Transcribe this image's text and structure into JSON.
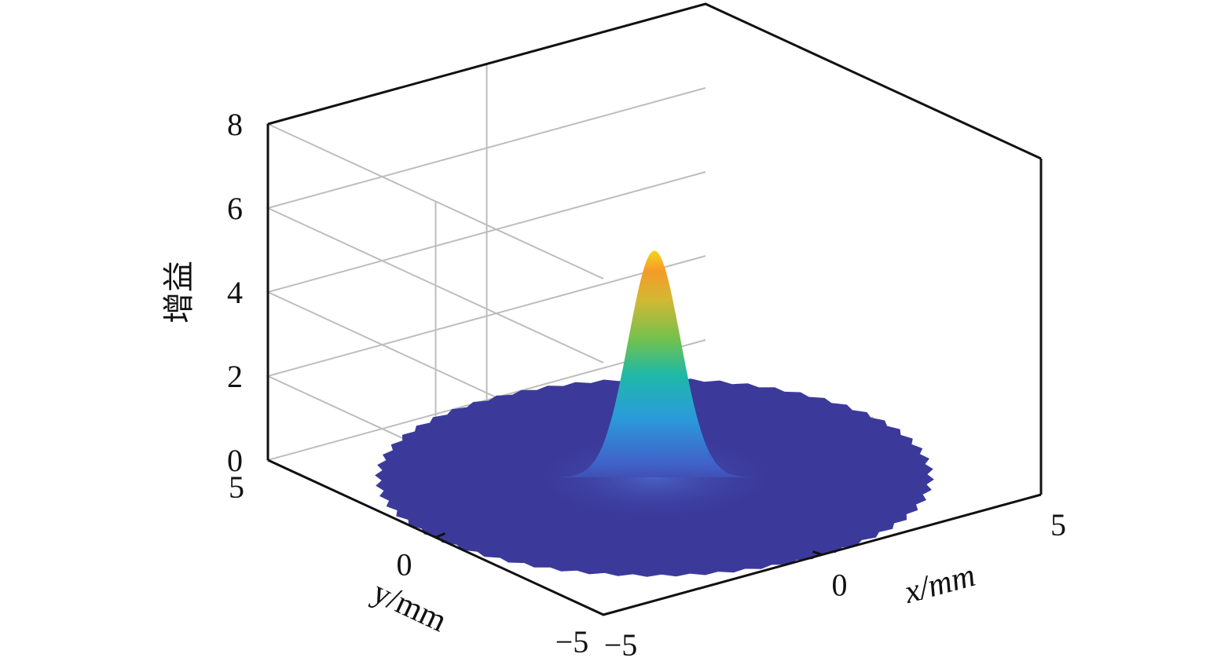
{
  "chart_data": {
    "type": "surface",
    "title": "",
    "xlabel": "x/mm",
    "ylabel": "y/mm",
    "zlabel": "增益",
    "xlim": [
      -5,
      5
    ],
    "ylim": [
      -5,
      5
    ],
    "zlim": [
      0,
      8
    ],
    "x_ticks": [
      "-5",
      "0",
      "5"
    ],
    "y_ticks": [
      "-5",
      "0",
      "5"
    ],
    "z_ticks": [
      "0",
      "2",
      "4",
      "6",
      "8"
    ],
    "grid": true,
    "colormap": "parula",
    "surface": {
      "function": "gaussian",
      "peak": 5.4,
      "center": [
        0,
        0
      ],
      "sigma_mm": 0.8,
      "domain_radius_mm": 5
    }
  }
}
